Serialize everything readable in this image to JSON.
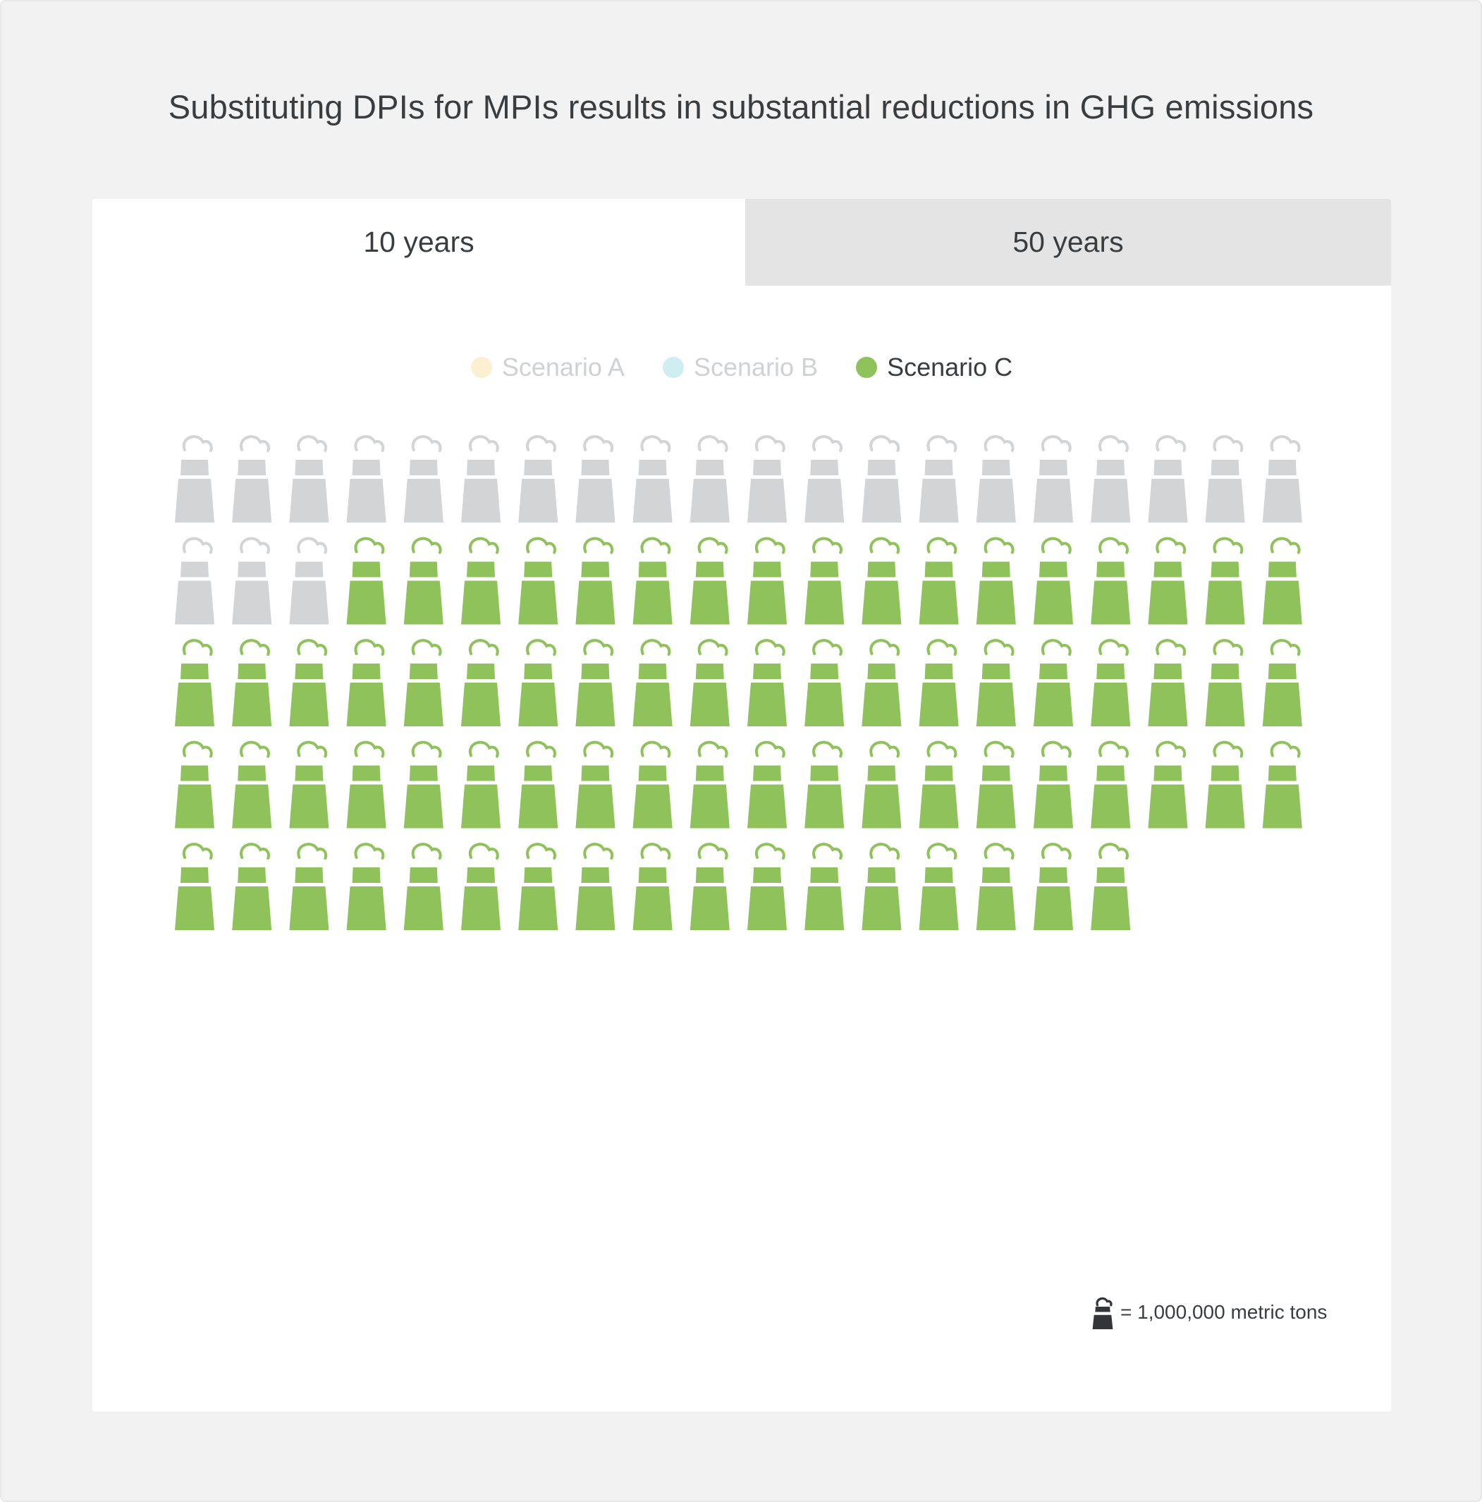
{
  "title": "Substituting DPIs for MPIs results in substantial reductions in GHG emissions",
  "tabs": [
    {
      "label": "10 years",
      "active": true
    },
    {
      "label": "50 years",
      "active": false
    }
  ],
  "legend": [
    {
      "label": "Scenario A",
      "color": "#fdf0d2",
      "text_color": "#cfd1d3",
      "active": false
    },
    {
      "label": "Scenario B",
      "color": "#d0eef1",
      "text_color": "#cfd1d3",
      "active": false
    },
    {
      "label": "Scenario C",
      "color": "#8fc25b",
      "text_color": "#3a3d40",
      "active": true
    }
  ],
  "unit_note": {
    "label": "= 1,000,000 metric tons"
  },
  "chart_data": {
    "type": "waffle",
    "icon": "factory-smokestack-icon",
    "unit_value": 1000000,
    "unit": "metric tons",
    "icons_per_row": 20,
    "total_icons": 97,
    "segments": [
      {
        "name": "Scenario C reduction",
        "count": 74,
        "color": "#8fc25b"
      },
      {
        "name": "remaining",
        "count": 23,
        "color": "#d3d4d6"
      }
    ],
    "fill_order": "remaining first, row by row"
  }
}
